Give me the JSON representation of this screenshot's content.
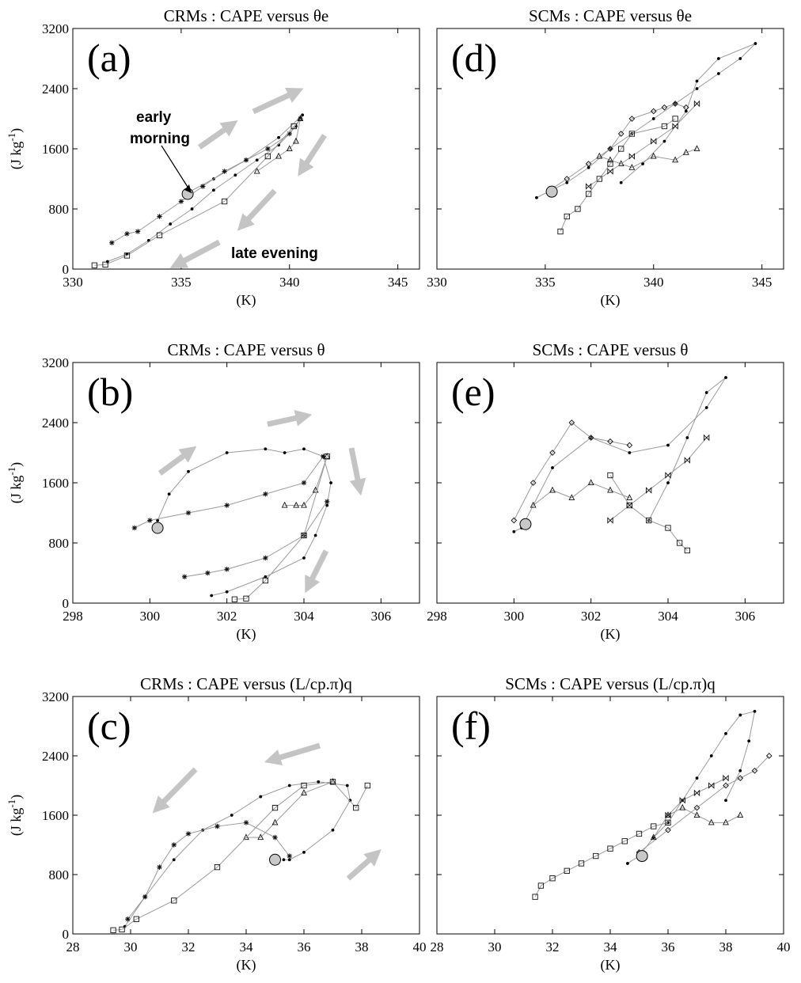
{
  "figure": {
    "panels_note": "",
    "ylabel": "(J kg",
    "ylabel_sup": "-1",
    "ylabel_close": ")",
    "xlabel": "(K)"
  },
  "chart_data": [
    {
      "id": "a",
      "type": "scatter",
      "title_prefix": "CRMs : CAPE versus ",
      "title_var": "θe",
      "panel_label": "(a)",
      "xlabel": "(K)",
      "ylabel": "(J kg-1)",
      "xlim": [
        330,
        346
      ],
      "ylim": [
        0,
        3200
      ],
      "xticks": [
        330,
        335,
        340,
        345
      ],
      "yticks": [
        0,
        800,
        1600,
        2400,
        3200
      ],
      "marker": {
        "x": 335.3,
        "y": 1000
      },
      "annotations": {
        "early": [
          "early",
          "morning"
        ],
        "late": "late evening"
      },
      "arrow_color": "#c4c4c4",
      "series": [
        {
          "marker": "dot",
          "x": [
            331.6,
            332.5,
            333.5,
            334.5,
            335.5,
            336.5,
            337.5,
            338.5,
            339.5,
            340.3,
            340.6,
            339.5,
            338,
            336.5,
            335.2
          ],
          "y": [
            100,
            200,
            380,
            600,
            800,
            1050,
            1250,
            1450,
            1650,
            1900,
            2050,
            1750,
            1450,
            1200,
            1000
          ]
        },
        {
          "marker": "star",
          "x": [
            331.8,
            332.5,
            333,
            334,
            335,
            336,
            337,
            338,
            339,
            340,
            340.5
          ],
          "y": [
            350,
            470,
            500,
            700,
            900,
            1100,
            1300,
            1450,
            1600,
            1800,
            2000
          ]
        },
        {
          "marker": "triangle",
          "x": [
            338.5,
            339.5,
            340,
            340.3,
            340.5
          ],
          "y": [
            1300,
            1500,
            1600,
            1700,
            2000
          ]
        },
        {
          "marker": "square",
          "x": [
            331,
            331.5,
            332.5,
            334,
            337,
            339,
            340.2
          ],
          "y": [
            50,
            60,
            180,
            450,
            900,
            1500,
            1900
          ]
        }
      ]
    },
    {
      "id": "d",
      "type": "scatter",
      "title_prefix": "SCMs : CAPE versus ",
      "title_var": "θe",
      "panel_label": "(d)",
      "xlabel": "(K)",
      "xlim": [
        330,
        346
      ],
      "ylim": [
        0,
        3200
      ],
      "xticks": [
        330,
        335,
        340,
        345
      ],
      "yticks": [
        0,
        800,
        1600,
        2400,
        3200
      ],
      "marker": {
        "x": 335.3,
        "y": 1030
      },
      "series": [
        {
          "marker": "dot",
          "x": [
            334.6,
            336,
            337,
            338,
            339,
            340,
            341,
            342,
            343,
            344,
            344.7,
            343,
            342,
            341.5,
            340.5,
            339.5,
            338.5
          ],
          "y": [
            950,
            1150,
            1350,
            1600,
            1800,
            2000,
            2200,
            2400,
            2600,
            2800,
            3000,
            2800,
            2500,
            2100,
            1700,
            1400,
            1150
          ]
        },
        {
          "marker": "diamond",
          "x": [
            335.2,
            336,
            337,
            338,
            338.5,
            339,
            340,
            340.5,
            341,
            341.5
          ],
          "y": [
            1050,
            1200,
            1400,
            1600,
            1800,
            2000,
            2100,
            2150,
            2200,
            2150
          ]
        },
        {
          "marker": "triangle",
          "x": [
            337.5,
            338,
            338.5,
            339,
            340,
            341,
            341.5,
            342
          ],
          "y": [
            1500,
            1450,
            1400,
            1350,
            1500,
            1450,
            1550,
            1600
          ]
        },
        {
          "marker": "square",
          "x": [
            335.7,
            336,
            336.5,
            337,
            337.5,
            338,
            338.5,
            339,
            340.5,
            341
          ],
          "y": [
            500,
            700,
            800,
            1000,
            1200,
            1400,
            1600,
            1800,
            1900,
            2000
          ]
        },
        {
          "marker": "bowtie",
          "x": [
            337,
            338,
            339,
            340,
            341,
            342
          ],
          "y": [
            1100,
            1300,
            1500,
            1700,
            1900,
            2200
          ]
        }
      ]
    },
    {
      "id": "b",
      "type": "scatter",
      "title_prefix": "CRMs : CAPE versus ",
      "title_var": "θ",
      "panel_label": "(b)",
      "xlabel": "(K)",
      "ylabel": "(J kg-1)",
      "xlim": [
        298,
        307
      ],
      "ylim": [
        0,
        3200
      ],
      "xticks": [
        298,
        300,
        302,
        304,
        306
      ],
      "yticks": [
        0,
        800,
        1600,
        2400,
        3200
      ],
      "marker": {
        "x": 300.2,
        "y": 1000
      },
      "series": [
        {
          "marker": "dot",
          "x": [
            300.2,
            300.5,
            301,
            302,
            303,
            303.5,
            304,
            304.5,
            304.7,
            304.6,
            304.3,
            304,
            303,
            302,
            301.6
          ],
          "y": [
            1100,
            1450,
            1750,
            2000,
            2050,
            2000,
            2050,
            1950,
            1600,
            1300,
            900,
            600,
            350,
            150,
            100
          ]
        },
        {
          "marker": "star",
          "x": [
            299.6,
            300,
            301,
            302,
            303,
            304,
            304.5
          ],
          "y": [
            1000,
            1100,
            1200,
            1300,
            1450,
            1600,
            1950
          ]
        },
        {
          "marker": "star",
          "x": [
            300.9,
            301.5,
            302,
            303,
            304,
            304.6
          ],
          "y": [
            350,
            400,
            450,
            600,
            900,
            1350
          ]
        },
        {
          "marker": "triangle",
          "x": [
            303.5,
            303.8,
            304,
            304.3,
            304.6
          ],
          "y": [
            1300,
            1300,
            1300,
            1500,
            1950
          ]
        },
        {
          "marker": "square",
          "x": [
            302.2,
            302.5,
            303,
            304,
            304.6
          ],
          "y": [
            50,
            60,
            300,
            900,
            1950
          ]
        }
      ]
    },
    {
      "id": "e",
      "type": "scatter",
      "title_prefix": "SCMs : CAPE versus ",
      "title_var": "θ",
      "panel_label": "(e)",
      "xlabel": "(K)",
      "xlim": [
        298,
        307
      ],
      "ylim": [
        0,
        3200
      ],
      "xticks": [
        298,
        300,
        302,
        304,
        306
      ],
      "yticks": [
        0,
        800,
        1600,
        2400,
        3200
      ],
      "marker": {
        "x": 300.3,
        "y": 1050
      },
      "series": [
        {
          "marker": "dot",
          "x": [
            300,
            300.2,
            301,
            302,
            303,
            304,
            305,
            305.5,
            305,
            304.5,
            304,
            303.5
          ],
          "y": [
            950,
            1000,
            1800,
            2200,
            2000,
            2100,
            2600,
            3000,
            2800,
            2200,
            1600,
            1100
          ]
        },
        {
          "marker": "diamond",
          "x": [
            300,
            300.5,
            301,
            301.5,
            302,
            302.5,
            303
          ],
          "y": [
            1100,
            1600,
            2000,
            2400,
            2200,
            2150,
            2100
          ]
        },
        {
          "marker": "triangle",
          "x": [
            300.5,
            301,
            301.5,
            302,
            302.5,
            303
          ],
          "y": [
            1300,
            1500,
            1400,
            1600,
            1500,
            1400
          ]
        },
        {
          "marker": "square",
          "x": [
            302.5,
            303,
            303.5,
            304,
            304.3,
            304.5
          ],
          "y": [
            1700,
            1300,
            1100,
            1000,
            800,
            700
          ]
        },
        {
          "marker": "bowtie",
          "x": [
            302.5,
            303,
            303.5,
            304,
            304.5,
            305
          ],
          "y": [
            1100,
            1300,
            1500,
            1700,
            1900,
            2200
          ]
        }
      ]
    },
    {
      "id": "c",
      "type": "scatter",
      "title_prefix": "CRMs : CAPE versus ",
      "title_var": "(L/cp.π)q",
      "panel_label": "(c)",
      "xlabel": "(K)",
      "ylabel": "(J kg-1)",
      "xlim": [
        28,
        40
      ],
      "ylim": [
        0,
        3200
      ],
      "xticks": [
        28,
        30,
        32,
        34,
        36,
        38,
        40
      ],
      "yticks": [
        0,
        800,
        1600,
        2400,
        3200
      ],
      "marker": {
        "x": 35,
        "y": 1000
      },
      "series": [
        {
          "marker": "dot",
          "x": [
            29.8,
            30.5,
            31.5,
            32.5,
            33.5,
            34.5,
            35.5,
            36.5,
            37.5,
            37.6,
            37,
            36,
            35.5,
            35.3
          ],
          "y": [
            100,
            500,
            1000,
            1400,
            1600,
            1850,
            2000,
            2050,
            2000,
            1800,
            1400,
            1100,
            1000,
            1000
          ]
        },
        {
          "marker": "star",
          "x": [
            29.9,
            30.5,
            31,
            31.5,
            32,
            33,
            34,
            35,
            35.5
          ],
          "y": [
            200,
            500,
            900,
            1200,
            1350,
            1450,
            1500,
            1300,
            1050
          ]
        },
        {
          "marker": "triangle",
          "x": [
            34,
            34.5,
            35,
            36,
            37
          ],
          "y": [
            1300,
            1300,
            1500,
            1900,
            2050
          ]
        },
        {
          "marker": "square",
          "x": [
            29.4,
            29.7,
            30.2,
            31.5,
            33,
            35,
            36,
            37,
            37.8,
            38.2
          ],
          "y": [
            50,
            60,
            200,
            450,
            900,
            1700,
            2000,
            2050,
            1700,
            2000
          ]
        }
      ]
    },
    {
      "id": "f",
      "type": "scatter",
      "title_prefix": "SCMs : CAPE versus ",
      "title_var": "(L/cp.π)q",
      "panel_label": "(f)",
      "xlabel": "(K)",
      "xlim": [
        28,
        40
      ],
      "ylim": [
        0,
        3200
      ],
      "xticks": [
        28,
        30,
        32,
        34,
        36,
        38,
        40
      ],
      "yticks": [
        0,
        800,
        1600,
        2400,
        3200
      ],
      "marker": {
        "x": 35.1,
        "y": 1050
      },
      "series": [
        {
          "marker": "dot",
          "x": [
            34.6,
            35,
            35.5,
            36,
            36.5,
            37,
            37.5,
            38,
            38.5,
            39,
            38.8,
            38.5,
            38
          ],
          "y": [
            950,
            1050,
            1300,
            1500,
            1800,
            2100,
            2400,
            2700,
            2950,
            3000,
            2600,
            2200,
            1800
          ]
        },
        {
          "marker": "diamond",
          "x": [
            35,
            36,
            37,
            38,
            38.5,
            39,
            39.5
          ],
          "y": [
            1100,
            1400,
            1700,
            2000,
            2100,
            2200,
            2400
          ]
        },
        {
          "marker": "triangle",
          "x": [
            35.5,
            36,
            36.5,
            37,
            37.5,
            38,
            38.5
          ],
          "y": [
            1300,
            1600,
            1700,
            1600,
            1500,
            1500,
            1600
          ]
        },
        {
          "marker": "square",
          "x": [
            31.4,
            31.6,
            32,
            32.5,
            33,
            33.5,
            34,
            34.5,
            35,
            35.5,
            36
          ],
          "y": [
            500,
            650,
            750,
            850,
            950,
            1050,
            1150,
            1250,
            1350,
            1450,
            1500
          ]
        },
        {
          "marker": "bowtie",
          "x": [
            36,
            36.5,
            37,
            37.5,
            38
          ],
          "y": [
            1600,
            1800,
            1900,
            2000,
            2100
          ]
        }
      ]
    }
  ]
}
